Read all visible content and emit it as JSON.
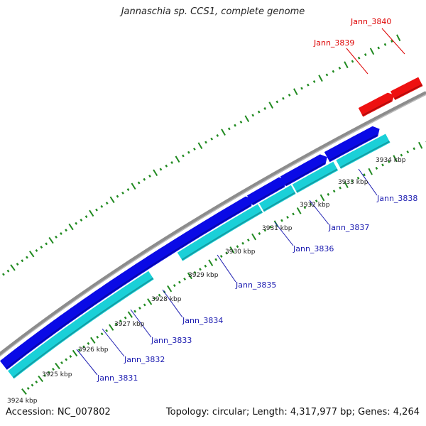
{
  "title": "Jannaschia sp. CCS1, complete genome",
  "footer": {
    "accession": "Accession: NC_007802",
    "summary": "Topology: circular; Length: 4,317,977 bp; Genes: 4,264"
  },
  "colors": {
    "backbone": "#8c8c8c",
    "forward_gene": "#0a0ae6",
    "reverse_gene": "#1ad0d8",
    "highlight_gene": "#ee1111",
    "tick": "#208a20",
    "gene_label": "#1a1ab0",
    "highlight_label": "#dd0000",
    "kbp_label": "#222222"
  },
  "kbp_labels": [
    "3924 kbp",
    "3925 kbp",
    "3926 kbp",
    "3927 kbp",
    "3928 kbp",
    "3929 kbp",
    "3930 kbp",
    "3931 kbp",
    "3932 kbp",
    "3933 kbp",
    "3934 kbp"
  ],
  "genes": [
    {
      "name": "Jann_3831",
      "strand": "reverse"
    },
    {
      "name": "Jann_3832",
      "strand": "forward"
    },
    {
      "name": "Jann_3833",
      "strand": "forward"
    },
    {
      "name": "Jann_3834",
      "strand": "forward"
    },
    {
      "name": "Jann_3835",
      "strand": "reverse"
    },
    {
      "name": "Jann_3836",
      "strand": "forward"
    },
    {
      "name": "Jann_3837",
      "strand": "reverse"
    },
    {
      "name": "Jann_3838",
      "strand": "reverse"
    },
    {
      "name": "Jann_3839",
      "strand": "highlight"
    },
    {
      "name": "Jann_3840",
      "strand": "highlight"
    }
  ]
}
